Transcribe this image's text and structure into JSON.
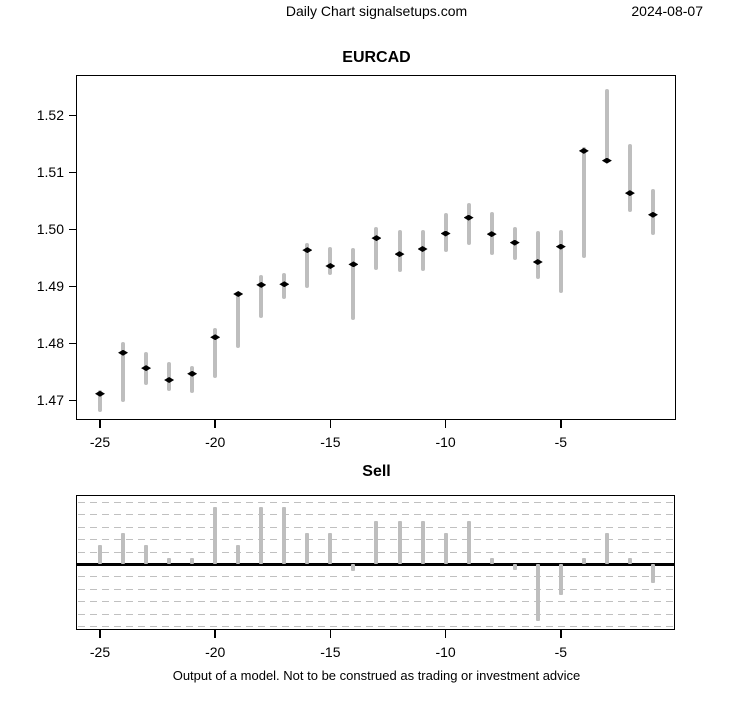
{
  "header": {
    "title": "Daily Chart signalsetups.com",
    "date": "2024-08-07"
  },
  "footer": {
    "disclaimer": "Output of a model. Not to be construed as trading or investment advice"
  },
  "colors": {
    "bar_gray": "#bebebe",
    "marker_black": "#000000",
    "grid_dash": "#c0c0c0",
    "axis_black": "#000000"
  },
  "chart_data": [
    {
      "type": "bar",
      "subtype": "high-low-close-bars",
      "title": "EURCAD",
      "xlabel": "",
      "ylabel": "",
      "x": [
        -25,
        -24,
        -23,
        -22,
        -21,
        -20,
        -19,
        -18,
        -17,
        -16,
        -15,
        -14,
        -13,
        -12,
        -11,
        -10,
        -9,
        -8,
        -7,
        -6,
        -5,
        -4,
        -3,
        -2,
        -1
      ],
      "series": [
        {
          "name": "high",
          "values": [
            1.4718,
            1.4802,
            1.4785,
            1.4767,
            1.476,
            1.4826,
            1.4888,
            1.4919,
            1.4923,
            1.4975,
            1.4969,
            1.4966,
            1.5004,
            1.4998,
            1.4999,
            1.5028,
            1.5045,
            1.5029,
            1.5004,
            1.4997,
            1.4999,
            1.5144,
            1.5246,
            1.5149,
            1.5071
          ]
        },
        {
          "name": "low",
          "values": [
            1.4679,
            1.4697,
            1.4726,
            1.4715,
            1.4712,
            1.4738,
            1.4791,
            1.4843,
            1.4878,
            1.4896,
            1.492,
            1.484,
            1.4928,
            1.4925,
            1.4927,
            1.496,
            1.4972,
            1.4954,
            1.4946,
            1.4913,
            1.4887,
            1.4949,
            1.5118,
            1.503,
            1.4989
          ]
        },
        {
          "name": "close",
          "values": [
            1.4711,
            1.4783,
            1.4756,
            1.4735,
            1.4746,
            1.481,
            1.4886,
            1.4902,
            1.4903,
            1.4963,
            1.4935,
            1.4938,
            1.4984,
            1.4956,
            1.4965,
            1.4992,
            1.502,
            1.4991,
            1.4976,
            1.4942,
            1.4969,
            1.5137,
            1.512,
            1.5063,
            1.5025
          ]
        }
      ],
      "x_ticks": [
        -25,
        -20,
        -15,
        -10,
        -5
      ],
      "y_ticks": [
        "1.47",
        "1.48",
        "1.49",
        "1.50",
        "1.51",
        "1.52"
      ],
      "xlim": [
        -26,
        0
      ],
      "ylim": [
        1.465,
        1.525
      ],
      "grid": false,
      "legend": "none"
    },
    {
      "type": "bar",
      "subtype": "zero-centered-bars",
      "title": "Sell",
      "xlabel": "",
      "ylabel": "",
      "x": [
        -25,
        -24,
        -23,
        -22,
        -21,
        -20,
        -19,
        -18,
        -17,
        -16,
        -15,
        -14,
        -13,
        -12,
        -11,
        -10,
        -9,
        -8,
        -7,
        -6,
        -5,
        -4,
        -3,
        -2,
        -1
      ],
      "values": [
        1.5,
        2.5,
        1.5,
        0.5,
        0.5,
        4.6,
        1.5,
        4.6,
        4.6,
        2.5,
        2.5,
        -0.6,
        3.5,
        3.5,
        3.5,
        2.5,
        3.5,
        0.5,
        -0.5,
        -4.6,
        -2.5,
        0.5,
        2.5,
        0.5,
        -1.5
      ],
      "x_ticks": [
        -25,
        -20,
        -15,
        -10,
        -5
      ],
      "ylim": [
        -5.5,
        5.5
      ],
      "grid": "horizontal dashed lines every 1 unit",
      "zero_line": true,
      "legend": "none"
    }
  ]
}
